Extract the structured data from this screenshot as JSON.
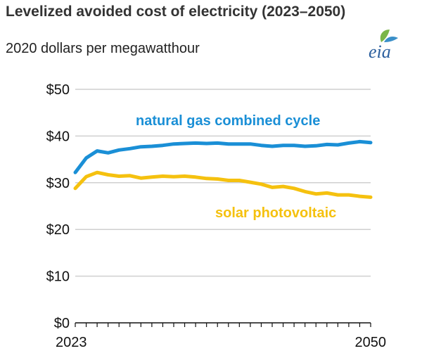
{
  "header": {
    "title": "Levelized avoided cost of electricity (2023–2050)",
    "subtitle": "2020 dollars per megawatthour",
    "logo_text": "eia"
  },
  "colors": {
    "natural_gas": "#1a8fd6",
    "solar": "#f5c10f",
    "grid": "#cfcfcf",
    "axis": "#111111",
    "logo_leaf_green": "#7ab648",
    "logo_leaf_blue": "#3a8fc8"
  },
  "chart_data": {
    "type": "line",
    "title": "Levelized avoided cost of electricity (2023–2050)",
    "ylabel": "2020 dollars per megawatthour",
    "xlabel": "",
    "ylim": [
      0,
      50
    ],
    "yticks": [
      0,
      10,
      20,
      30,
      40,
      50
    ],
    "ytick_labels": [
      "$0",
      "$10",
      "$20",
      "$30",
      "$40",
      "$50"
    ],
    "xlim": [
      2023,
      2050
    ],
    "xtick_labels": [
      "2023",
      "2050"
    ],
    "grid": true,
    "x": [
      2023,
      2024,
      2025,
      2026,
      2027,
      2028,
      2029,
      2030,
      2031,
      2032,
      2033,
      2034,
      2035,
      2036,
      2037,
      2038,
      2039,
      2040,
      2041,
      2042,
      2043,
      2044,
      2045,
      2046,
      2047,
      2048,
      2049,
      2050
    ],
    "series": [
      {
        "name": "natural gas combined cycle",
        "color_key": "natural_gas",
        "values": [
          32.2,
          35.3,
          36.8,
          36.4,
          37.0,
          37.3,
          37.7,
          37.8,
          38.0,
          38.3,
          38.4,
          38.5,
          38.4,
          38.5,
          38.3,
          38.3,
          38.3,
          38.0,
          37.8,
          38.0,
          38.0,
          37.8,
          37.9,
          38.2,
          38.1,
          38.5,
          38.8,
          38.6
        ]
      },
      {
        "name": "solar photovoltaic",
        "color_key": "solar",
        "values": [
          28.8,
          31.3,
          32.2,
          31.7,
          31.4,
          31.5,
          31.0,
          31.2,
          31.4,
          31.3,
          31.4,
          31.2,
          30.9,
          30.8,
          30.5,
          30.5,
          30.1,
          29.7,
          29.0,
          29.2,
          28.8,
          28.1,
          27.6,
          27.8,
          27.4,
          27.4,
          27.1,
          26.9
        ]
      }
    ],
    "annotations": [
      "natural gas combined cycle",
      "solar photovoltaic"
    ]
  }
}
